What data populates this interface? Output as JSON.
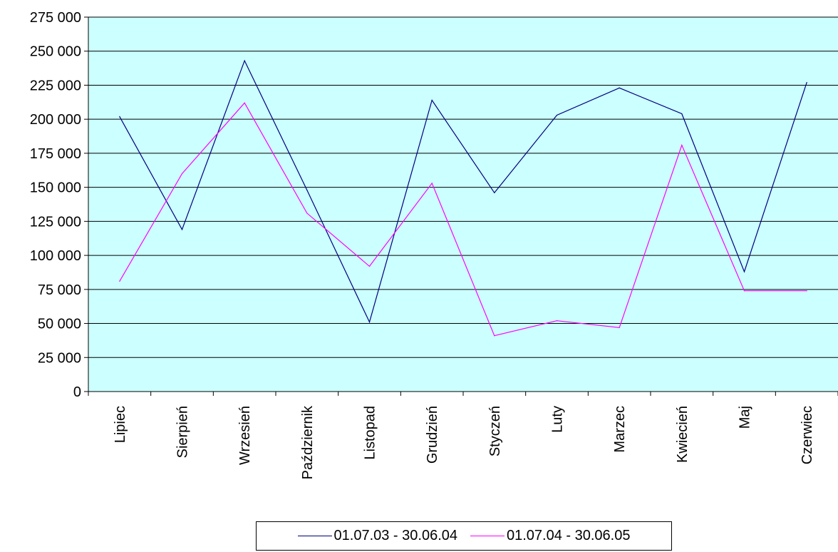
{
  "chart_data": {
    "type": "line",
    "categories": [
      "Lipiec",
      "Sierpień",
      "Wrzesień",
      "Październik",
      "Listopad",
      "Grudzień",
      "Styczeń",
      "Luty",
      "Marzec",
      "Kwiecień",
      "Maj",
      "Czerwiec"
    ],
    "series": [
      {
        "name": "01.07.03 - 30.06.04",
        "color": "#000080",
        "values": [
          202000,
          119000,
          243000,
          148000,
          51000,
          214000,
          146000,
          203000,
          223000,
          204000,
          88000,
          227000
        ]
      },
      {
        "name": "01.07.04 - 30.06.05",
        "color": "#ff00ff",
        "values": [
          81000,
          160000,
          212000,
          131000,
          92000,
          153000,
          41000,
          52000,
          47000,
          181000,
          74000,
          74000
        ]
      }
    ],
    "ylim": [
      0,
      275000
    ],
    "yticks": [
      0,
      25000,
      50000,
      75000,
      100000,
      125000,
      150000,
      175000,
      200000,
      225000,
      250000,
      275000
    ],
    "ytick_labels": [
      "0",
      "25 000",
      "50 000",
      "75 000",
      "100 000",
      "125 000",
      "150 000",
      "175 000",
      "200 000",
      "225 000",
      "250 000",
      "275 000"
    ],
    "plot_background": "#ccffff",
    "grid": true,
    "legend": "bottom"
  }
}
